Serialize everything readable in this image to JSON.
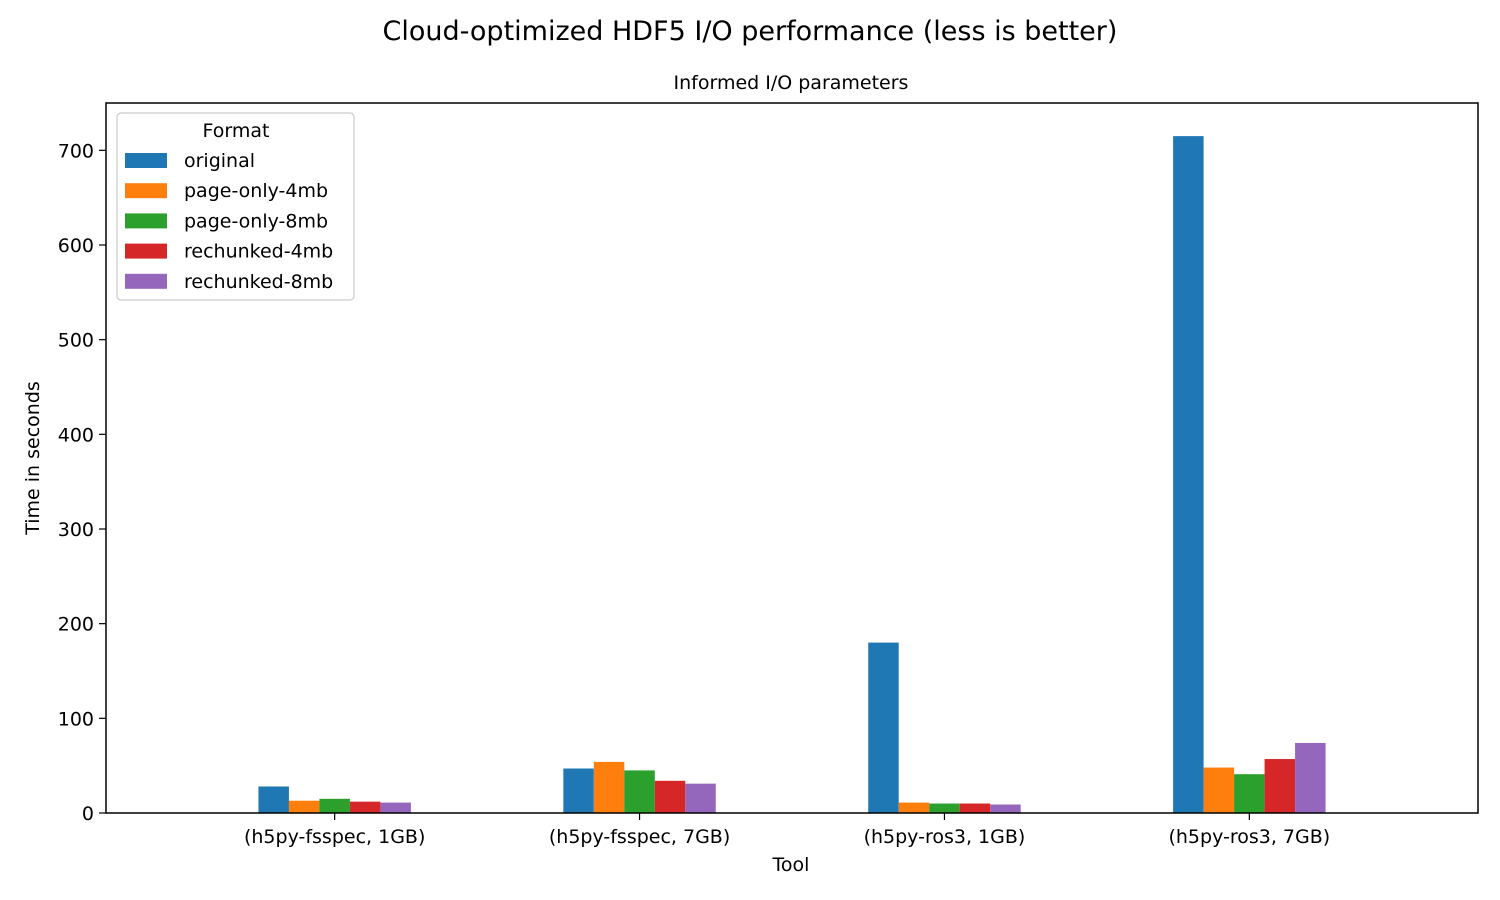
{
  "chart_data": {
    "type": "bar",
    "title": "Cloud-optimized HDF5 I/O performance (less is better)",
    "subtitle": "Informed I/O parameters",
    "xlabel": "Tool",
    "ylabel": "Time in seconds",
    "ylim": [
      0,
      750
    ],
    "yticks": [
      0,
      100,
      200,
      300,
      400,
      500,
      600,
      700
    ],
    "grid": false,
    "legend": {
      "title": "Format",
      "placement": "top-left"
    },
    "categories": [
      "(h5py-fsspec, 1GB)",
      "(h5py-fsspec, 7GB)",
      "(h5py-ros3, 1GB)",
      "(h5py-ros3, 7GB)"
    ],
    "series": [
      {
        "name": "original",
        "color": "#1f77b4",
        "values": [
          28,
          47,
          180,
          715
        ]
      },
      {
        "name": "page-only-4mb",
        "color": "#ff7f0e",
        "values": [
          13,
          54,
          11,
          48
        ]
      },
      {
        "name": "page-only-8mb",
        "color": "#2ca02c",
        "values": [
          15,
          45,
          10,
          41
        ]
      },
      {
        "name": "rechunked-4mb",
        "color": "#d62728",
        "values": [
          12,
          34,
          10,
          57
        ]
      },
      {
        "name": "rechunked-8mb",
        "color": "#9467bd",
        "values": [
          11,
          31,
          9,
          74
        ]
      }
    ]
  }
}
